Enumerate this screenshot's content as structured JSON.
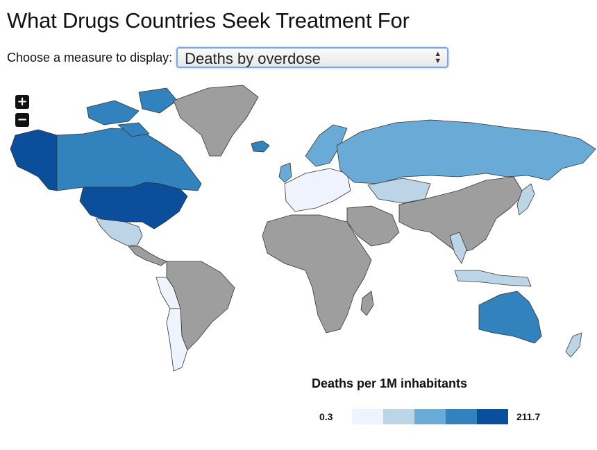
{
  "title": "What Drugs Countries Seek Treatment For",
  "controls": {
    "label": "Choose a measure to display:",
    "selected": "Deaths by overdose"
  },
  "zoom": {
    "in_label": "+",
    "out_label": "−"
  },
  "legend": {
    "title": "Deaths per 1M inhabitants",
    "min": "0.3",
    "max": "211.7",
    "colors": [
      "#eef3fd",
      "#bcd5e6",
      "#6aaad6",
      "#3182bd",
      "#0b4f9c"
    ]
  },
  "colors": {
    "no_data": "#9e9e9e",
    "border": "#333333"
  },
  "regions": [
    {
      "name": "alaska",
      "level": 4
    },
    {
      "name": "canada",
      "level": 3
    },
    {
      "name": "canada-arctic",
      "level": 3
    },
    {
      "name": "greenland",
      "level": null
    },
    {
      "name": "iceland",
      "level": 3
    },
    {
      "name": "usa",
      "level": 4
    },
    {
      "name": "mexico",
      "level": 1
    },
    {
      "name": "central-america",
      "level": null
    },
    {
      "name": "south-america",
      "level": null
    },
    {
      "name": "west-south-america",
      "level": 0
    },
    {
      "name": "southern-cone",
      "level": 0
    },
    {
      "name": "scandinavia",
      "level": 2
    },
    {
      "name": "uk-ireland",
      "level": 2
    },
    {
      "name": "western-europe",
      "level": 0
    },
    {
      "name": "russia",
      "level": 2
    },
    {
      "name": "kazakhstan",
      "level": 1
    },
    {
      "name": "africa",
      "level": null
    },
    {
      "name": "middle-east",
      "level": null
    },
    {
      "name": "asia",
      "level": null
    },
    {
      "name": "southeast-asia",
      "level": 1
    },
    {
      "name": "japan",
      "level": 1
    },
    {
      "name": "indonesia",
      "level": 1
    },
    {
      "name": "australia",
      "level": 3
    },
    {
      "name": "new-zealand",
      "level": 1
    },
    {
      "name": "madagascar",
      "level": null
    }
  ]
}
